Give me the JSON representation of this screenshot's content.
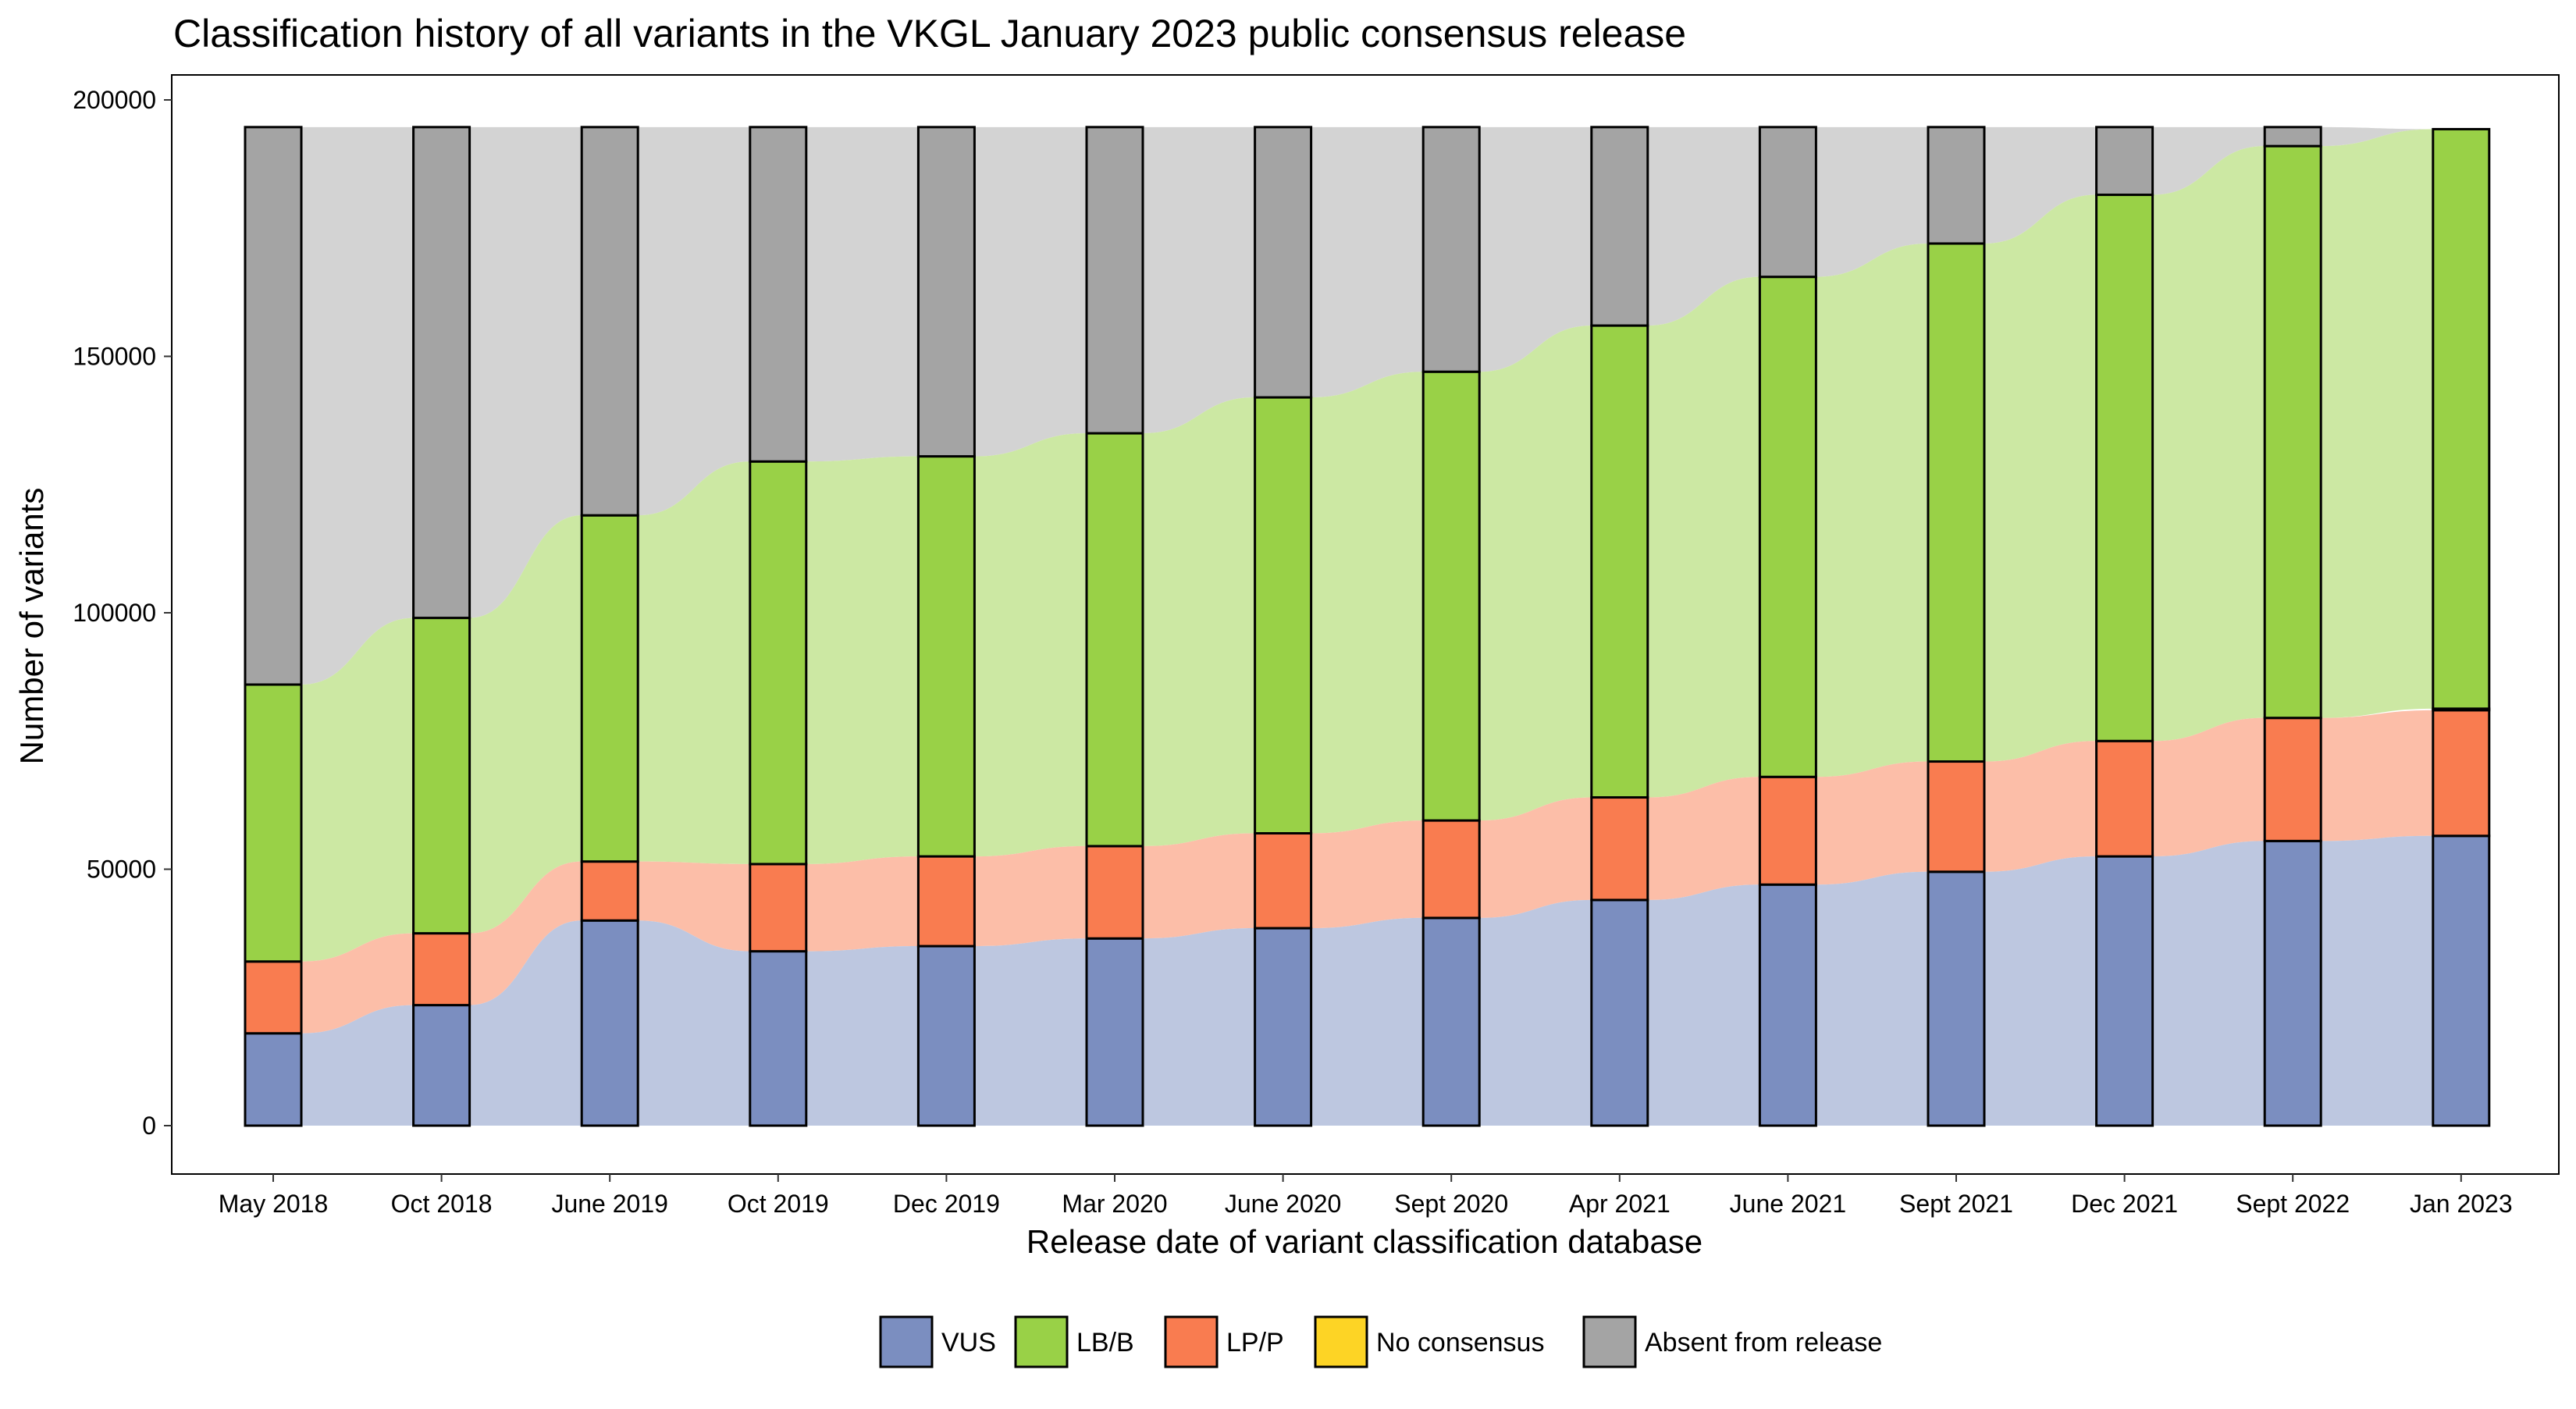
{
  "chart_data": {
    "type": "alluvial stacked bar",
    "title": "Classification history of all variants in the VKGL January 2023 public consensus release",
    "xlabel": "Release date of variant classification database",
    "ylabel": "Number of variants",
    "ylim": [
      0,
      200000
    ],
    "yticks": [
      "0",
      "50000",
      "100000",
      "150000",
      "200000"
    ],
    "grid": false,
    "legend_position": "bottom",
    "categories": [
      "May 2018",
      "Oct 2018",
      "June 2019",
      "Oct 2019",
      "Dec 2019",
      "Mar 2020",
      "June 2020",
      "Sept 2020",
      "Apr 2021",
      "June 2021",
      "Sept 2021",
      "Dec 2021",
      "Sept 2022",
      "Jan 2023"
    ],
    "series": [
      {
        "name": "VUS",
        "color": "#7B8EC0",
        "values": [
          18000,
          23500,
          40000,
          34000,
          35000,
          36500,
          38500,
          40500,
          44000,
          47000,
          49500,
          52500,
          55500,
          56500
        ]
      },
      {
        "name": "LB/B",
        "color": "#99D147",
        "values": [
          54000,
          61500,
          67500,
          78500,
          78000,
          80500,
          85000,
          87500,
          92000,
          97500,
          101000,
          106500,
          111500,
          113000
        ]
      },
      {
        "name": "LP/P",
        "color": "#F97C50",
        "values": [
          14000,
          14000,
          11500,
          17000,
          17500,
          18000,
          18500,
          19000,
          20000,
          21000,
          21500,
          22500,
          24000,
          24500
        ]
      },
      {
        "name": "No consensus",
        "color": "#FDD425",
        "values": [
          0,
          0,
          0,
          0,
          0,
          0,
          0,
          0,
          0,
          0,
          0,
          0,
          0,
          300
        ]
      },
      {
        "name": "Absent from release",
        "color": "#A4A4A4",
        "values": [
          108700,
          95700,
          75700,
          65200,
          64200,
          59700,
          52700,
          47700,
          38700,
          29200,
          22700,
          13200,
          3700,
          0
        ]
      }
    ]
  }
}
